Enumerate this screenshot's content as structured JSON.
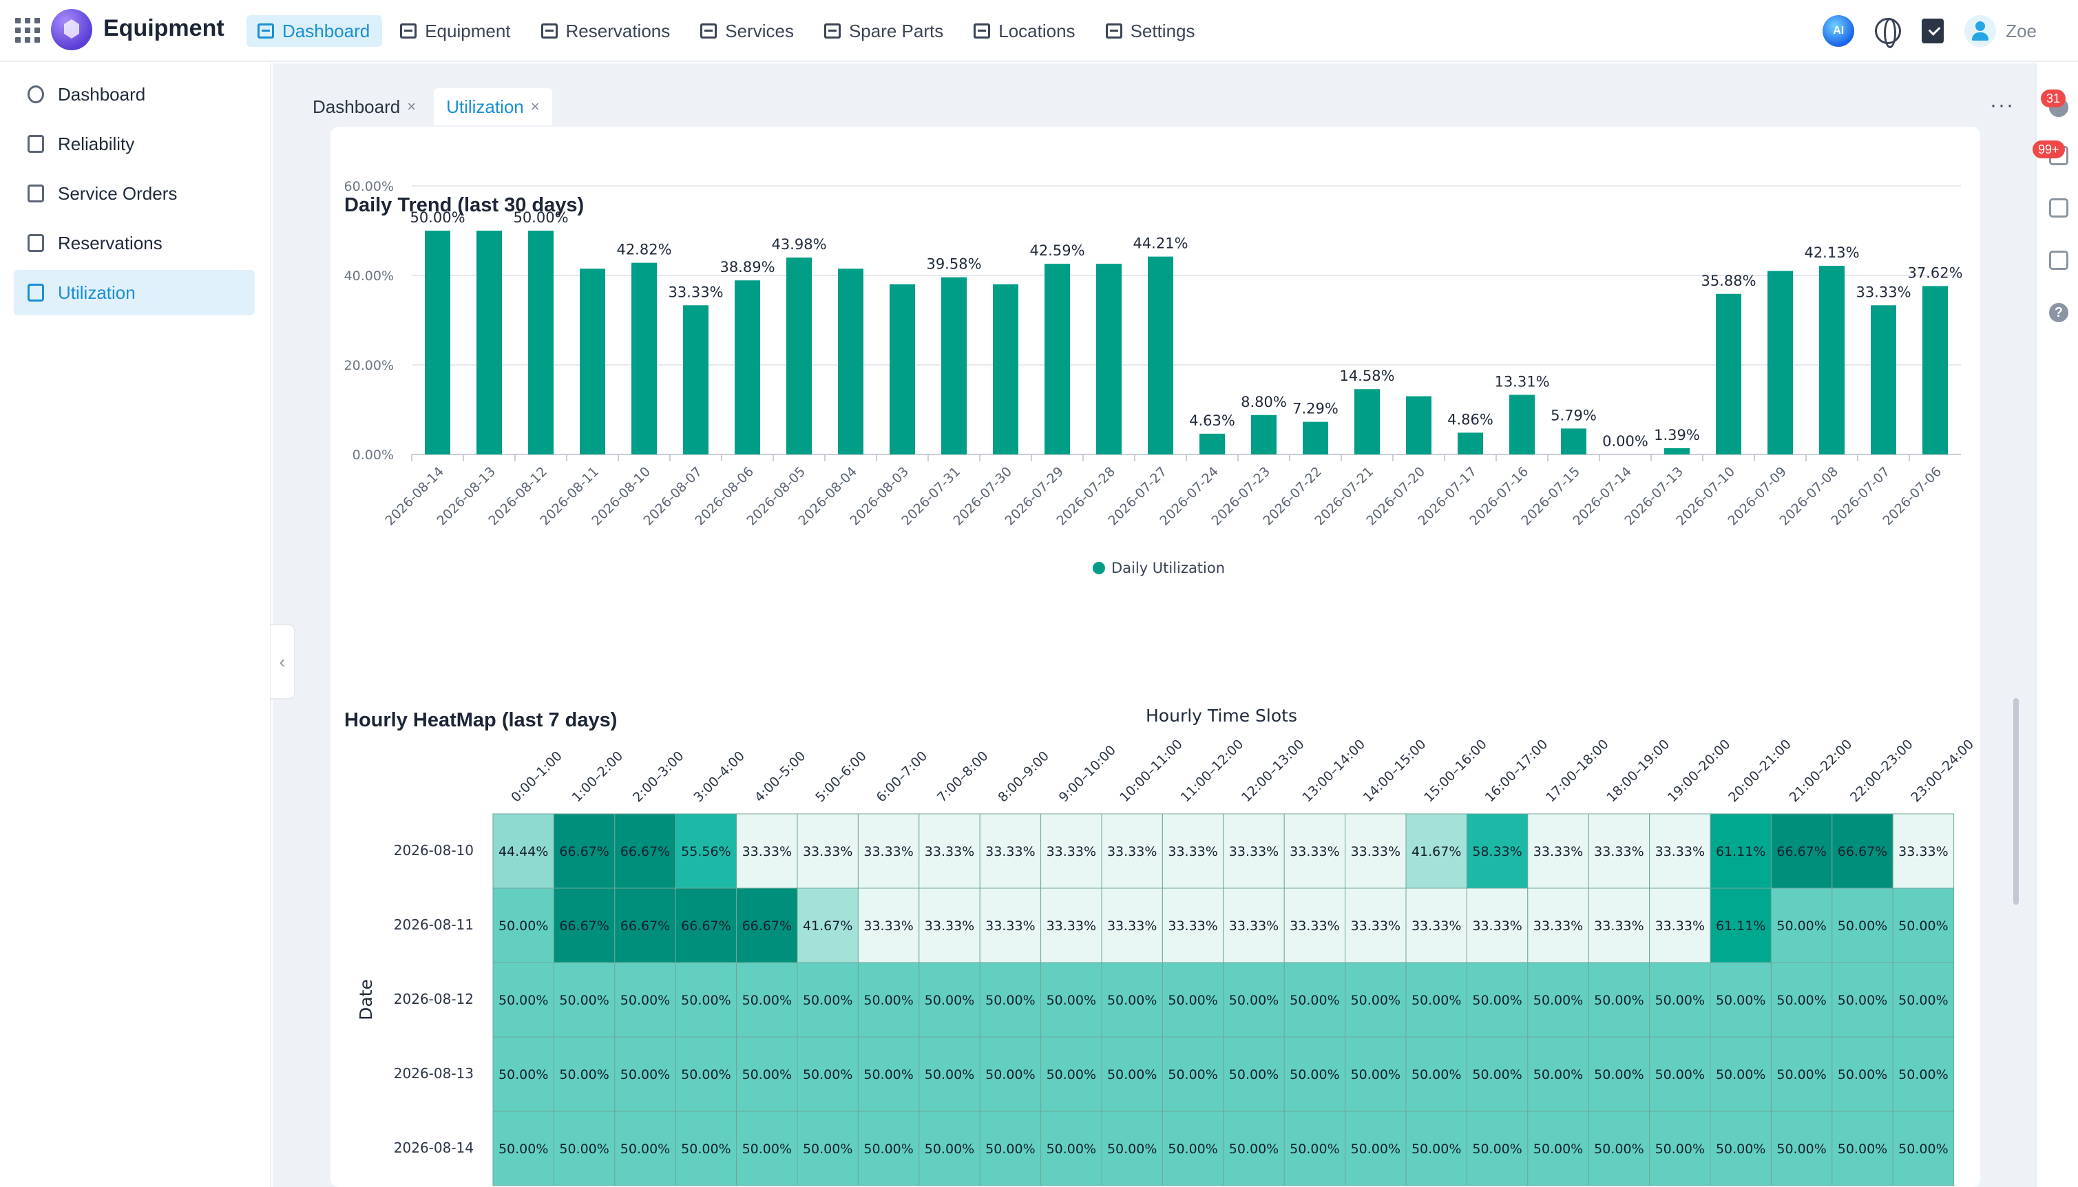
{
  "app": {
    "title": "Equipment"
  },
  "nav": [
    {
      "label": "Dashboard",
      "icon": "dashboard-icon",
      "active": true
    },
    {
      "label": "Equipment",
      "icon": "equipment-icon",
      "active": false
    },
    {
      "label": "Reservations",
      "icon": "reservations-icon",
      "active": false
    },
    {
      "label": "Services",
      "icon": "services-icon",
      "active": false
    },
    {
      "label": "Spare Parts",
      "icon": "spare-parts-icon",
      "active": false
    },
    {
      "label": "Locations",
      "icon": "locations-icon",
      "active": false
    },
    {
      "label": "Settings",
      "icon": "gear-icon",
      "active": false
    }
  ],
  "user": {
    "name": "Zoe",
    "ai_label": "AI"
  },
  "sidebar": {
    "items": [
      {
        "label": "Dashboard",
        "icon": "gauge-icon",
        "active": false
      },
      {
        "label": "Reliability",
        "icon": "reliability-icon",
        "active": false
      },
      {
        "label": "Service Orders",
        "icon": "document-icon",
        "active": false
      },
      {
        "label": "Reservations",
        "icon": "calendar-icon",
        "active": false
      },
      {
        "label": "Utilization",
        "icon": "utilization-icon",
        "active": true
      }
    ]
  },
  "tabs": [
    {
      "label": "Dashboard",
      "active": false
    },
    {
      "label": "Utilization",
      "active": true
    }
  ],
  "more_label": "···",
  "right_strip": {
    "notifications_badge": "31",
    "tasks_badge": "99+"
  },
  "colors": {
    "accent": "#1a8fd6",
    "bar": "#009e86"
  },
  "trend_card": {
    "title": "Daily Trend (last 30 days)"
  },
  "heatmap_card": {
    "title": "Hourly HeatMap (last 7 days)"
  },
  "chart_data": [
    {
      "type": "bar",
      "title": "Daily Trend (last 30 days)",
      "categories": [
        "2026-08-14",
        "2026-08-13",
        "2026-08-12",
        "2026-08-11",
        "2026-08-10",
        "2026-08-07",
        "2026-08-06",
        "2026-08-05",
        "2026-08-04",
        "2026-08-03",
        "2026-07-31",
        "2026-07-30",
        "2026-07-29",
        "2026-07-28",
        "2026-07-27",
        "2026-07-24",
        "2026-07-23",
        "2026-07-22",
        "2026-07-21",
        "2026-07-20",
        "2026-07-17",
        "2026-07-16",
        "2026-07-15",
        "2026-07-14",
        "2026-07-13",
        "2026-07-10",
        "2026-07-09",
        "2026-07-08",
        "2026-07-07",
        "2026-07-06"
      ],
      "series": [
        {
          "name": "Daily Utilization",
          "values": [
            50.0,
            50.0,
            50.0,
            41.5,
            42.82,
            33.33,
            38.89,
            43.98,
            41.5,
            38.0,
            39.58,
            38.0,
            42.59,
            42.59,
            44.21,
            4.63,
            8.8,
            7.29,
            14.58,
            13.0,
            4.86,
            13.31,
            5.79,
            0.0,
            1.39,
            35.88,
            41.0,
            42.13,
            33.33,
            37.62
          ],
          "labels": [
            "50.00%",
            "",
            "50.00%",
            "",
            "42.82%",
            "33.33%",
            "38.89%",
            "43.98%",
            "",
            "",
            "39.58%",
            "",
            "42.59%",
            "",
            "44.21%",
            "4.63%",
            "8.80%",
            "7.29%",
            "14.58%",
            "",
            "4.86%",
            "13.31%",
            "5.79%",
            "0.00%",
            "1.39%",
            "35.88%",
            "",
            "42.13%",
            "33.33%",
            "37.62%"
          ]
        }
      ],
      "yticks": [
        "0.00%",
        "20.00%",
        "40.00%",
        "60.00%"
      ],
      "ylim": [
        0,
        60
      ],
      "legend": "bottom-center",
      "grid": true
    },
    {
      "type": "heatmap",
      "title": "Hourly HeatMap (last 7 days)",
      "xlabel": "Hourly Time Slots",
      "ylabel": "Date",
      "x": [
        "0:00–1:00",
        "1:00–2:00",
        "2:00–3:00",
        "3:00–4:00",
        "4:00–5:00",
        "5:00–6:00",
        "6:00–7:00",
        "7:00–8:00",
        "8:00–9:00",
        "9:00–10:00",
        "10:00–11:00",
        "11:00–12:00",
        "12:00–13:00",
        "13:00–14:00",
        "14:00–15:00",
        "15:00–16:00",
        "16:00–17:00",
        "17:00–18:00",
        "18:00–19:00",
        "19:00–20:00",
        "20:00–21:00",
        "21:00–22:00",
        "22:00–23:00",
        "23:00–24:00"
      ],
      "y": [
        "2026-08-10",
        "2026-08-11",
        "2026-08-12",
        "2026-08-13",
        "2026-08-14"
      ],
      "values": [
        [
          44.44,
          66.67,
          66.67,
          55.56,
          33.33,
          33.33,
          33.33,
          33.33,
          33.33,
          33.33,
          33.33,
          33.33,
          33.33,
          33.33,
          33.33,
          41.67,
          58.33,
          33.33,
          33.33,
          33.33,
          61.11,
          66.67,
          66.67,
          33.33
        ],
        [
          50.0,
          66.67,
          66.67,
          66.67,
          66.67,
          41.67,
          33.33,
          33.33,
          33.33,
          33.33,
          33.33,
          33.33,
          33.33,
          33.33,
          33.33,
          33.33,
          33.33,
          33.33,
          33.33,
          33.33,
          61.11,
          50.0,
          50.0,
          50.0
        ],
        [
          50.0,
          50.0,
          50.0,
          50.0,
          50.0,
          50.0,
          50.0,
          50.0,
          50.0,
          50.0,
          50.0,
          50.0,
          50.0,
          50.0,
          50.0,
          50.0,
          50.0,
          50.0,
          50.0,
          50.0,
          50.0,
          50.0,
          50.0,
          50.0
        ],
        [
          50.0,
          50.0,
          50.0,
          50.0,
          50.0,
          50.0,
          50.0,
          50.0,
          50.0,
          50.0,
          50.0,
          50.0,
          50.0,
          50.0,
          50.0,
          50.0,
          50.0,
          50.0,
          50.0,
          50.0,
          50.0,
          50.0,
          50.0,
          50.0
        ],
        [
          50.0,
          50.0,
          50.0,
          50.0,
          50.0,
          50.0,
          50.0,
          50.0,
          50.0,
          50.0,
          50.0,
          50.0,
          50.0,
          50.0,
          50.0,
          50.0,
          50.0,
          50.0,
          50.0,
          50.0,
          50.0,
          50.0,
          50.0,
          50.0
        ]
      ],
      "value_format": "percent-2dp"
    }
  ]
}
